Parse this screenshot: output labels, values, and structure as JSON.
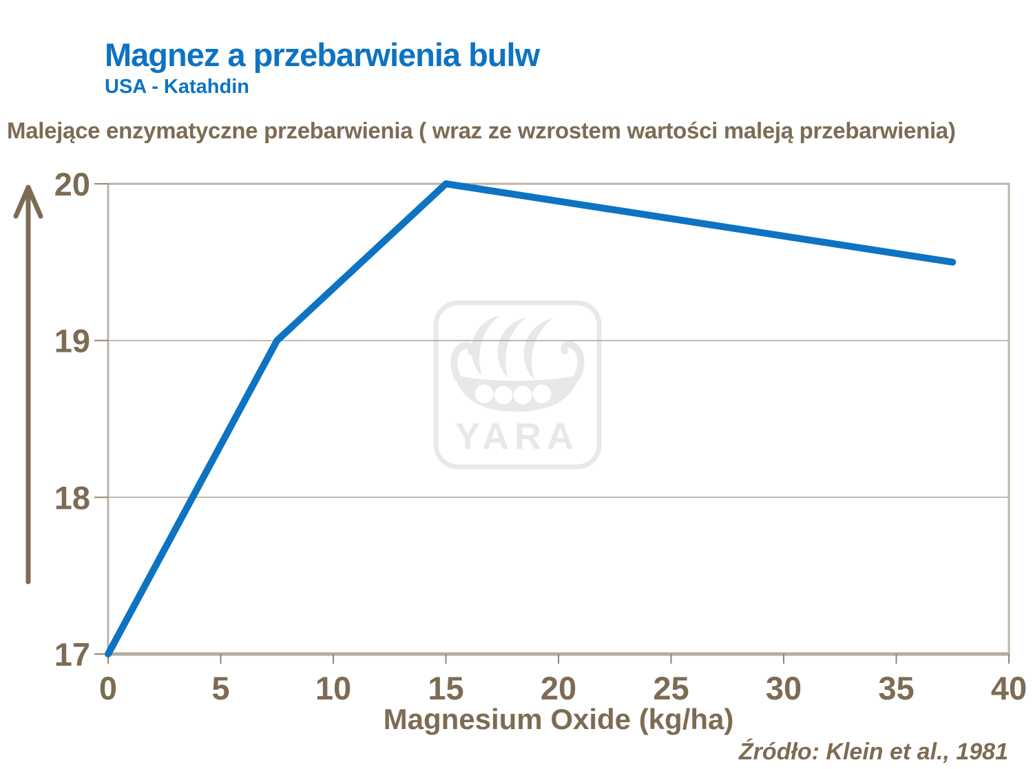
{
  "header": {
    "title": "Magnez a przebarwienia bulw",
    "subtitle": "USA - Katahdin"
  },
  "description": "Malejące enzymatyczne przebarwienia ( wraz ze wzrostem wartości maleją przebarwienia)",
  "source": "Źródło: Klein et al., 1981",
  "watermark": {
    "text": "YARA"
  },
  "colors": {
    "title_blue": "#0d73c2",
    "text_brown": "#7d6b54",
    "axis_border": "#bdb3a8",
    "axis_bottom": "#b5aba0",
    "gridline": "#b3a99c",
    "tick": "#93836d",
    "watermark_gray": "#e8e8e8",
    "line_blue": "#0d73c2"
  },
  "chart_data": {
    "type": "line",
    "title": "Magnez a przebarwienia bulw",
    "subtitle": "USA - Katahdin",
    "x": [
      0,
      7.5,
      15,
      37.5
    ],
    "y": [
      17,
      19,
      20,
      19.5
    ],
    "xlabel": "Magnesium Oxide (kg/ha)",
    "ylabel": "Malejące enzymatyczne przebarwienia ( wraz ze wzrostem wartości maleją przebarwienia)",
    "xlim": [
      0,
      40
    ],
    "ylim": [
      17,
      20
    ],
    "x_ticks": [
      "0",
      "5",
      "10",
      "15",
      "20",
      "25",
      "30",
      "35",
      "40"
    ],
    "y_ticks": [
      "17",
      "18",
      "19",
      "20"
    ],
    "grid": "horizontal-inner",
    "legend": "none",
    "line_color": "#0d73c2",
    "line_width": 10
  }
}
